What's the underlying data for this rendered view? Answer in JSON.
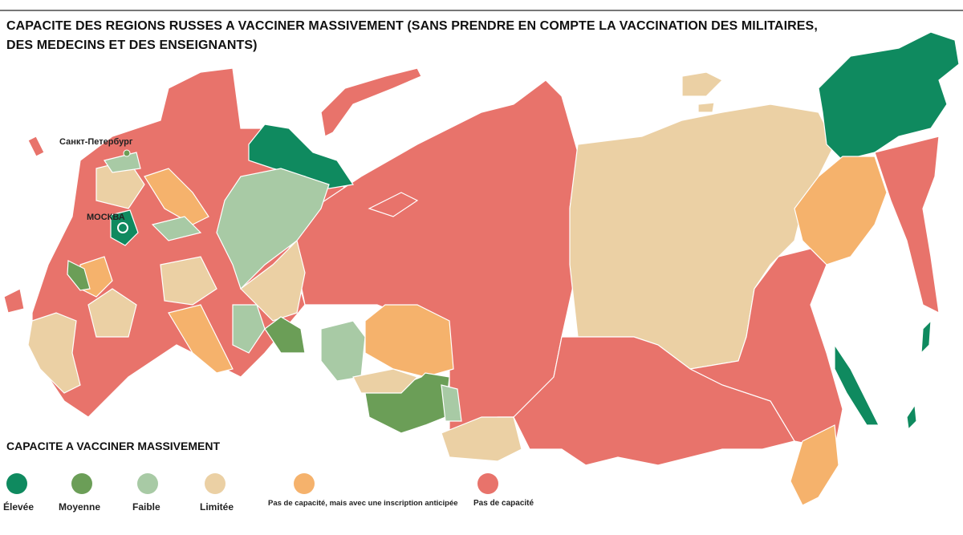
{
  "header": {
    "title_lines": [
      "CAPACITE DES REGIONS RUSSES A VACCINER MASSIVEMENT (SANS PRENDRE EN COMPTE LA VACCINATION DES MILITAIRES,",
      "DES MEDECINS ET DES ENSEIGNANTS)"
    ]
  },
  "map": {
    "cities": [
      {
        "label": "Санкт-Петербург"
      },
      {
        "label": "МОСКВА"
      }
    ]
  },
  "legend": {
    "title": "CAPACITE A VACCINER MASSIVEMENT",
    "items": [
      {
        "label": "Élevée",
        "color": "#0f8a5f"
      },
      {
        "label": "Moyenne",
        "color": "#6b9e57"
      },
      {
        "label": "Faible",
        "color": "#a8caa5"
      },
      {
        "label": "Limitée",
        "color": "#ebd0a4"
      },
      {
        "label": "Pas de capacité, mais avec une inscription anticipée",
        "color": "#f5b26c"
      },
      {
        "label": "Pas de capacité",
        "color": "#e8736b"
      }
    ]
  }
}
